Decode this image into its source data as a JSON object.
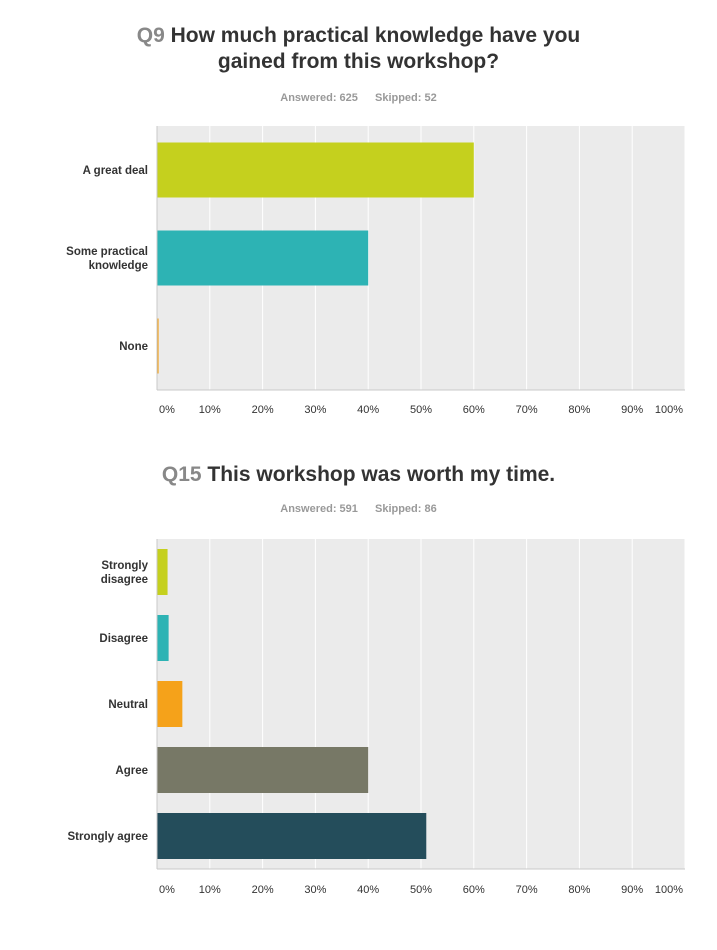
{
  "colors": {
    "plot_bg": "#ebebeb",
    "gridline": "#ffffff",
    "axis_line": "#c8c8c8",
    "label_text": "#333333",
    "stats_text": "#999999",
    "qnum_text": "#888888"
  },
  "questions": [
    {
      "number": "Q9",
      "title_line1": "How much practical knowledge have you",
      "title_line2": "gained from this workshop?",
      "answered": "Answered: 625",
      "skipped": "Skipped: 52"
    },
    {
      "number": "Q15",
      "title_line1": "This workshop was worth my time.",
      "title_line2": "",
      "answered": "Answered: 591",
      "skipped": "Skipped: 86"
    }
  ],
  "chart_data": [
    {
      "type": "bar",
      "orientation": "horizontal",
      "categories": [
        [
          "A great deal"
        ],
        [
          "Some practical",
          "knowledge"
        ],
        [
          "None"
        ]
      ],
      "values": [
        60,
        40,
        0.3
      ],
      "colors": [
        "#c5d01e",
        "#2db3b4",
        "#f5a21a"
      ],
      "xlim": [
        0,
        100
      ],
      "xticks": [
        "0%",
        "10%",
        "20%",
        "30%",
        "40%",
        "50%",
        "60%",
        "70%",
        "80%",
        "90%",
        "100%"
      ],
      "grid": true
    },
    {
      "type": "bar",
      "orientation": "horizontal",
      "categories": [
        [
          "Strongly",
          "disagree"
        ],
        [
          "Disagree"
        ],
        [
          "Neutral"
        ],
        [
          "Agree"
        ],
        [
          "Strongly agree"
        ]
      ],
      "values": [
        2,
        2.2,
        4.8,
        40,
        51
      ],
      "colors": [
        "#c5d01e",
        "#2db3b4",
        "#f5a21a",
        "#777866",
        "#244d5b"
      ],
      "xlim": [
        0,
        100
      ],
      "xticks": [
        "0%",
        "10%",
        "20%",
        "30%",
        "40%",
        "50%",
        "60%",
        "70%",
        "80%",
        "90%",
        "100%"
      ],
      "grid": true
    }
  ]
}
